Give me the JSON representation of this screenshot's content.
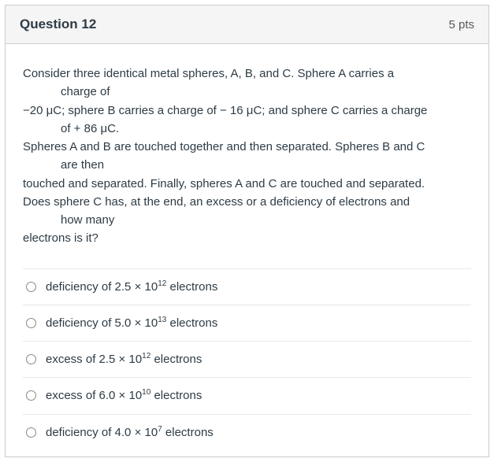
{
  "header": {
    "title": "Question 12",
    "points": "5 pts"
  },
  "stem": {
    "p1": "Consider three identical metal spheres, A, B, and C.  Sphere A carries a",
    "p1b": "charge of",
    "p2": "−20 μC; sphere B carries a charge of − 16 μC; and sphere C carries a charge",
    "p2b": "of + 86 μC.",
    "p3": "Spheres A and B are touched together and then separated.  Spheres B and C",
    "p3b": "are then",
    "p4": "touched and separated. Finally, spheres A and C are touched and separated.",
    "p5": "Does sphere C has, at the end, an excess or a deficiency of electrons and",
    "p5b": "how many",
    "p6": "electrons is it?"
  },
  "options": [
    {
      "prefix": "deficiency of  2.5 × 10",
      "exp": "12",
      "suffix": "  electrons"
    },
    {
      "prefix": "deficiency of  5.0 × 10",
      "exp": "13",
      "suffix": "  electrons"
    },
    {
      "prefix": "excess of  2.5 × 10",
      "exp": "12",
      "suffix": "  electrons"
    },
    {
      "prefix": " excess of  6.0 × 10",
      "exp": "10",
      "suffix": "  electrons"
    },
    {
      "prefix": "deficiency of  4.0 × 10",
      "exp": "7",
      "suffix": "  electrons"
    }
  ],
  "colors": {
    "border": "#c7cdd1",
    "header_bg": "#f5f5f5",
    "text": "#2d3b45",
    "points_text": "#595959",
    "option_divider": "#e8e8e8"
  }
}
